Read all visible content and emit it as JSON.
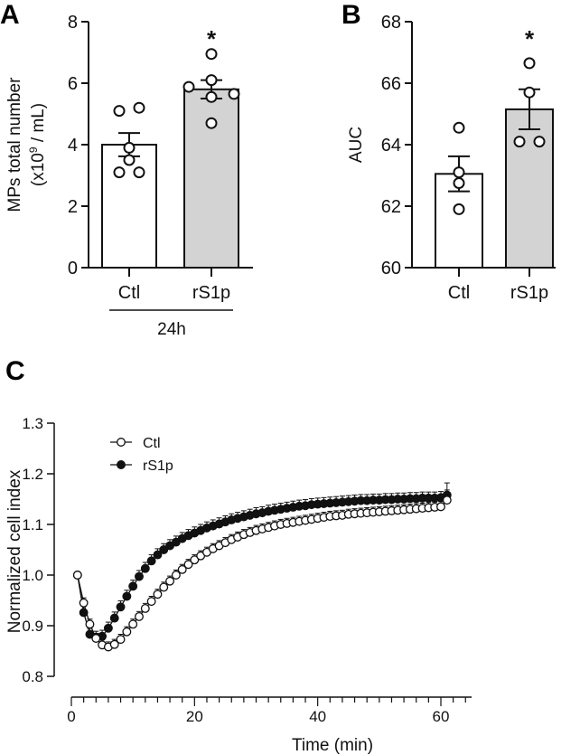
{
  "chart_data": [
    {
      "panel": "A",
      "type": "bar",
      "categories": [
        "Ctl",
        "rS1p"
      ],
      "group_label": "24h",
      "ylabel_line1": "MPs total number",
      "ylabel_line2_pre": "(x10",
      "ylabel_line2_sup": "9",
      "ylabel_line2_post": " / mL)",
      "ylim": [
        0,
        8
      ],
      "yticks": [
        0,
        2,
        4,
        6,
        8
      ],
      "values": [
        4.0,
        5.8
      ],
      "sem": [
        0.38,
        0.3
      ],
      "points": [
        [
          5.1,
          5.2,
          3.9,
          3.5,
          3.1,
          3.1
        ],
        [
          6.95,
          6.1,
          5.88,
          5.65,
          5.55,
          4.7
        ]
      ],
      "significance": [
        "",
        "*"
      ],
      "fills": [
        "#ffffff",
        "#d3d3d3"
      ]
    },
    {
      "panel": "B",
      "type": "bar",
      "categories": [
        "Ctl",
        "rS1p"
      ],
      "ylabel": "AUC",
      "ylim": [
        60,
        68
      ],
      "yticks": [
        60,
        62,
        64,
        66,
        68
      ],
      "values": [
        63.05,
        65.15
      ],
      "sem": [
        0.57,
        0.65
      ],
      "points": [
        [
          64.55,
          63.1,
          62.75,
          61.9
        ],
        [
          66.65,
          65.7,
          64.1,
          64.1
        ]
      ],
      "significance": [
        "",
        "*"
      ],
      "fills": [
        "#ffffff",
        "#d3d3d3"
      ]
    },
    {
      "panel": "C",
      "type": "line",
      "xlabel": "Time (min)",
      "ylabel": "Normalized cell index",
      "xlim": [
        0,
        65
      ],
      "ylim": [
        0.8,
        1.3
      ],
      "xticks": [
        0,
        20,
        40,
        60
      ],
      "yticks": [
        "0.8",
        "0.9",
        "1.0",
        "1.1",
        "1.2",
        "1.3"
      ],
      "legend_position": "top-left",
      "x_start": 1,
      "series": [
        {
          "name": "rS1p",
          "marker": "filled",
          "sem": 0.012,
          "values": [
            1.0,
            0.926,
            0.883,
            0.877,
            0.879,
            0.895,
            0.915,
            0.937,
            0.958,
            0.978,
            0.997,
            1.013,
            1.028,
            1.04,
            1.05,
            1.058,
            1.065,
            1.072,
            1.078,
            1.083,
            1.088,
            1.093,
            1.097,
            1.101,
            1.105,
            1.109,
            1.112,
            1.115,
            1.118,
            1.121,
            1.123,
            1.126,
            1.128,
            1.13,
            1.132,
            1.134,
            1.136,
            1.137,
            1.139,
            1.14,
            1.141,
            1.142,
            1.143,
            1.144,
            1.145,
            1.146,
            1.147,
            1.147,
            1.148,
            1.148,
            1.149,
            1.149,
            1.15,
            1.15,
            1.151,
            1.151,
            1.152,
            1.152,
            1.152,
            1.153,
            1.158
          ]
        },
        {
          "name": "Ctl",
          "marker": "open",
          "sem": 0.01,
          "values": [
            1.0,
            0.945,
            0.903,
            0.875,
            0.862,
            0.858,
            0.863,
            0.873,
            0.888,
            0.903,
            0.918,
            0.934,
            0.948,
            0.962,
            0.976,
            0.988,
            1.0,
            1.011,
            1.021,
            1.03,
            1.038,
            1.045,
            1.052,
            1.058,
            1.064,
            1.07,
            1.075,
            1.08,
            1.084,
            1.088,
            1.091,
            1.094,
            1.097,
            1.1,
            1.102,
            1.104,
            1.106,
            1.108,
            1.11,
            1.112,
            1.114,
            1.116,
            1.117,
            1.118,
            1.12,
            1.121,
            1.122,
            1.123,
            1.124,
            1.125,
            1.126,
            1.127,
            1.128,
            1.129,
            1.13,
            1.131,
            1.132,
            1.133,
            1.134,
            1.135,
            1.148
          ]
        }
      ]
    }
  ]
}
